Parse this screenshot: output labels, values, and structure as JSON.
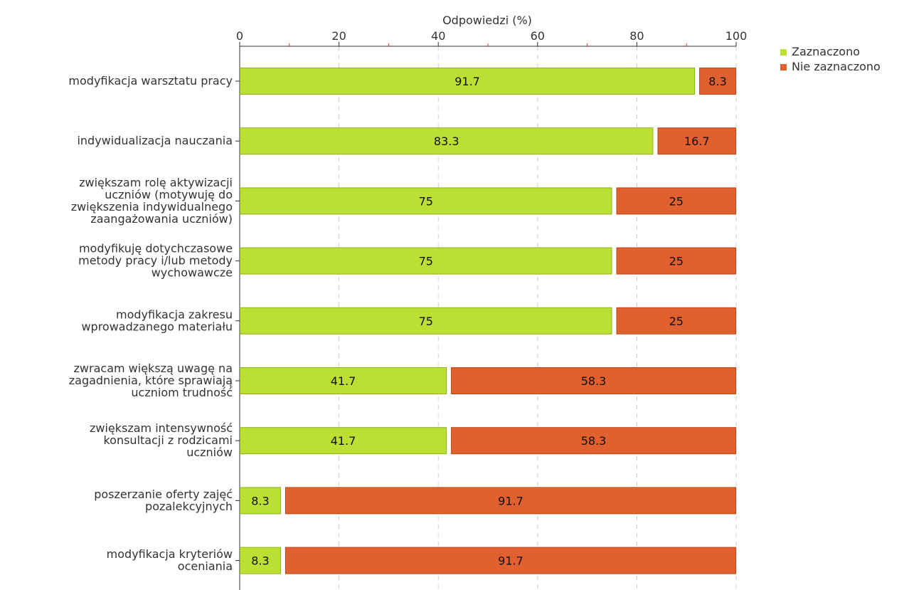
{
  "chart_data": {
    "type": "bar",
    "orientation": "horizontal",
    "stacked": true,
    "title": "",
    "xlabel": "Odpowiedzi (%)",
    "ylabel": "",
    "xlim": [
      0,
      100
    ],
    "x_ticks": [
      0,
      20,
      40,
      60,
      80,
      100
    ],
    "grid": true,
    "legend_position": "top-right",
    "categories": [
      [
        "modyfikacja warsztatu pracy"
      ],
      [
        "indywidualizacja nauczania"
      ],
      [
        "zwiększam rolę aktywizacji",
        "uczniów (motywuję do",
        "zwiększenia indywidualnego",
        "zaangażowania uczniów)"
      ],
      [
        "modyfikuję dotychczasowe",
        "metody pracy i/lub metody",
        "wychowawcze"
      ],
      [
        "modyfikacja zakresu",
        "wprowadzanego materiału"
      ],
      [
        "zwracam większą uwagę na",
        "zagadnienia, które sprawiają",
        "uczniom trudność"
      ],
      [
        "zwiększam intensywność",
        "konsultacji z rodzicami",
        "uczniów"
      ],
      [
        "poszerzanie oferty zajęć",
        "pozalekcyjnych"
      ],
      [
        "modyfikacja kryteriów",
        "oceniania"
      ]
    ],
    "series": [
      {
        "name": "Zaznaczono",
        "color": "#bbe033",
        "stroke": "#8fb01f",
        "values": [
          91.7,
          83.3,
          75,
          75,
          75,
          41.7,
          41.7,
          8.3,
          8.3
        ]
      },
      {
        "name": "Nie zaznaczono",
        "color": "#e06030",
        "stroke": "#b84818",
        "values": [
          8.3,
          16.7,
          25,
          25,
          25,
          58.3,
          58.3,
          91.7,
          91.7
        ]
      }
    ]
  }
}
